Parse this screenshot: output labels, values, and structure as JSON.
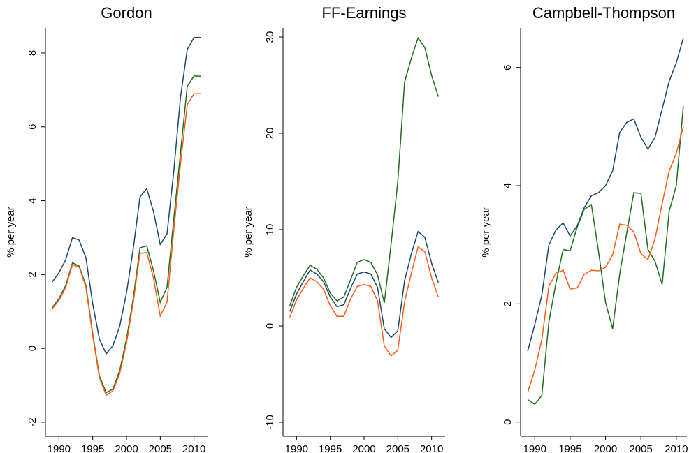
{
  "chart_data": [
    {
      "type": "line",
      "title": "Gordon",
      "y_label": "% per year",
      "x": [
        1989,
        1990,
        1991,
        1992,
        1993,
        1994,
        1995,
        1996,
        1997,
        1998,
        1999,
        2000,
        2001,
        2002,
        2003,
        2004,
        2005,
        2006,
        2007,
        2008,
        2009,
        2010,
        2011
      ],
      "xlim": [
        1988,
        2012
      ],
      "xticks": [
        1990,
        1995,
        2000,
        2005,
        2010
      ],
      "ylim": [
        -2.38,
        8.68
      ],
      "yticks": [
        -2,
        0,
        2,
        4,
        6,
        8
      ],
      "series": [
        {
          "color": "#1a476f",
          "values": [
            1.8,
            2.05,
            2.4,
            3.0,
            2.93,
            2.45,
            1.2,
            0.25,
            -0.15,
            0.08,
            0.6,
            1.5,
            2.7,
            4.1,
            4.33,
            3.7,
            2.82,
            3.1,
            4.8,
            6.8,
            8.1,
            8.42,
            8.42
          ]
        },
        {
          "color": "#1e6e1e",
          "values": [
            1.1,
            1.35,
            1.7,
            2.32,
            2.23,
            1.7,
            0.4,
            -0.75,
            -1.2,
            -1.1,
            -0.6,
            0.25,
            1.35,
            2.72,
            2.78,
            2.1,
            1.25,
            1.65,
            3.5,
            5.3,
            7.1,
            7.38,
            7.37
          ]
        },
        {
          "color": "#ff5a14",
          "values": [
            1.07,
            1.3,
            1.65,
            2.27,
            2.2,
            1.65,
            0.35,
            -0.8,
            -1.27,
            -1.15,
            -0.68,
            0.15,
            1.25,
            2.57,
            2.6,
            1.9,
            0.88,
            1.25,
            3.2,
            5.0,
            6.6,
            6.9,
            6.9
          ]
        }
      ]
    },
    {
      "type": "line",
      "title": "FF-Earnings",
      "y_label": "% per year",
      "x": [
        1989,
        1990,
        1991,
        1992,
        1993,
        1994,
        1995,
        1996,
        1997,
        1998,
        1999,
        2000,
        2001,
        2002,
        2003,
        2004,
        2005,
        2006,
        2007,
        2008,
        2009,
        2010,
        2011
      ],
      "xlim": [
        1988,
        2012
      ],
      "xticks": [
        1990,
        1995,
        2000,
        2005,
        2010
      ],
      "ylim": [
        -11.45,
        30.94
      ],
      "yticks": [
        -10,
        0,
        10,
        20,
        30
      ],
      "series": [
        {
          "color": "#1a476f",
          "values": [
            1.5,
            3.3,
            4.6,
            5.8,
            5.4,
            4.6,
            3.0,
            2.0,
            2.2,
            3.9,
            5.4,
            5.6,
            5.4,
            4.0,
            -0.3,
            -1.2,
            -0.5,
            4.7,
            7.5,
            9.8,
            9.2,
            6.5,
            4.5
          ]
        },
        {
          "color": "#1e6e1e",
          "values": [
            2.1,
            4.0,
            5.2,
            6.3,
            5.9,
            5.0,
            3.4,
            2.6,
            3.0,
            4.8,
            6.6,
            6.9,
            6.6,
            5.3,
            2.4,
            8.5,
            15,
            25.3,
            27.8,
            29.9,
            28.9,
            26,
            23.8
          ]
        },
        {
          "color": "#ff5a14",
          "values": [
            0.9,
            2.7,
            3.9,
            5.0,
            4.6,
            3.8,
            2.1,
            1.0,
            1.0,
            2.8,
            4.1,
            4.3,
            4.1,
            2.6,
            -2.1,
            -3.1,
            -2.5,
            2.5,
            5.5,
            8.2,
            7.7,
            5.0,
            3.0
          ]
        }
      ]
    },
    {
      "type": "line",
      "title": "Campbell-Thompson",
      "y_label": "% per year",
      "x": [
        1989,
        1990,
        1991,
        1992,
        1993,
        1994,
        1995,
        1996,
        1997,
        1998,
        1999,
        2000,
        2001,
        2002,
        2003,
        2004,
        2005,
        2006,
        2007,
        2008,
        2009,
        2010,
        2011
      ],
      "xlim": [
        1988,
        2011.5
      ],
      "xticks": [
        1990,
        1995,
        2000,
        2005,
        2010
      ],
      "ylim": [
        -0.24,
        6.67
      ],
      "yticks": [
        0,
        2,
        4,
        6
      ],
      "series": [
        {
          "color": "#1a476f",
          "values": [
            1.2,
            1.65,
            2.15,
            3.0,
            3.25,
            3.37,
            3.15,
            3.32,
            3.63,
            3.83,
            3.88,
            4.0,
            4.25,
            4.9,
            5.07,
            5.13,
            4.82,
            4.62,
            4.82,
            5.3,
            5.77,
            6.08,
            6.5
          ]
        },
        {
          "color": "#1e6e1e",
          "values": [
            0.38,
            0.3,
            0.45,
            1.7,
            2.35,
            2.92,
            2.9,
            3.3,
            3.6,
            3.68,
            2.9,
            2.03,
            1.58,
            2.5,
            3.2,
            3.88,
            3.87,
            2.92,
            2.72,
            2.33,
            3.57,
            4.0,
            5.35
          ]
        },
        {
          "color": "#ff5a14",
          "values": [
            0.5,
            0.88,
            1.4,
            2.3,
            2.52,
            2.57,
            2.25,
            2.27,
            2.5,
            2.57,
            2.56,
            2.62,
            2.83,
            3.35,
            3.33,
            3.22,
            2.85,
            2.75,
            3.1,
            3.7,
            4.25,
            4.55,
            5.0
          ]
        }
      ]
    }
  ]
}
